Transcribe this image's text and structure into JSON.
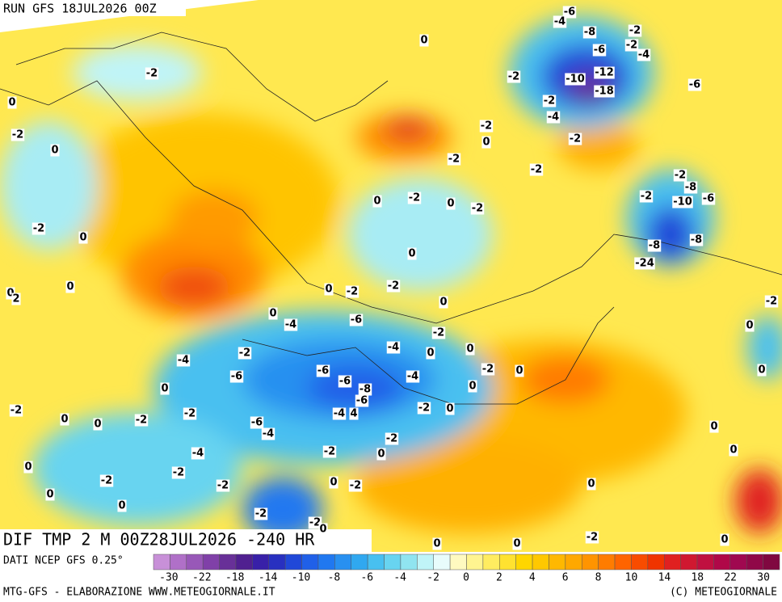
{
  "header": {
    "run": "RUN GFS 18JUL2026 00Z"
  },
  "map": {
    "title": "DIF TMP 2 M 00Z28JUL2026 -240 HR",
    "labels": [
      "-6",
      "-4",
      "-8",
      "-2",
      "0",
      "-6",
      "-2",
      "-4",
      "-2",
      "-2",
      "-12",
      "-10",
      "-6",
      "-18",
      "0",
      "-2",
      "-4",
      "-2",
      "-2",
      "0",
      "-2",
      "0",
      "-2",
      "-2",
      "-2",
      "-8",
      "-2",
      "-10",
      "-6",
      "-2",
      "0",
      "0",
      "-2",
      "-2",
      "0",
      "-8",
      "-8",
      "0",
      "-24",
      "0",
      "0",
      "2",
      "0",
      "-2",
      "-2",
      "0",
      "-2",
      "0",
      "-4",
      "-6",
      "-2",
      "0",
      "-2",
      "-4",
      "0",
      "0",
      "-4",
      "-6",
      "-2",
      "0",
      "0",
      "-6",
      "-6",
      "-4",
      "0",
      "-8",
      "0",
      "-6",
      "-2",
      "-2",
      "-2",
      "0",
      "-4",
      "4",
      "-2",
      "0",
      "0",
      "-6",
      "-4",
      "0",
      "-2",
      "-2",
      "-4",
      "0",
      "0",
      "0",
      "-2",
      "-2",
      "0",
      "-2",
      "-2",
      "0",
      "0",
      "0",
      "-2",
      "-2",
      "0",
      "-2",
      "0",
      "0",
      "0"
    ]
  },
  "legend": {
    "source": "DATI NCEP GFS 0.25°",
    "colors": [
      "#c890d8",
      "#b070c8",
      "#9858b8",
      "#8040a8",
      "#683098",
      "#502090",
      "#3820a8",
      "#2830c0",
      "#2048d8",
      "#2060e8",
      "#2078f0",
      "#2890f0",
      "#30a8f0",
      "#48c0f0",
      "#68d4f0",
      "#90e4f0",
      "#c0f4f8",
      "#e8fcfc",
      "#fffac0",
      "#fff490",
      "#ffec60",
      "#ffe230",
      "#ffd600",
      "#ffc800",
      "#ffb800",
      "#ffa800",
      "#ff9400",
      "#ff7c00",
      "#ff6400",
      "#f84c00",
      "#f03400",
      "#e02020",
      "#d01830",
      "#c01040",
      "#b00848",
      "#a00850",
      "#900848",
      "#800840"
    ],
    "ticks": [
      -30,
      -22,
      -18,
      -14,
      -10,
      -8,
      -6,
      -4,
      -2,
      0,
      2,
      4,
      6,
      8,
      10,
      14,
      18,
      22,
      30
    ]
  },
  "footer": {
    "left": "MTG-GFS - ELABORAZIONE WWW.METEOGIORNALE.IT",
    "right": "(C) METEOGIORNALE"
  }
}
